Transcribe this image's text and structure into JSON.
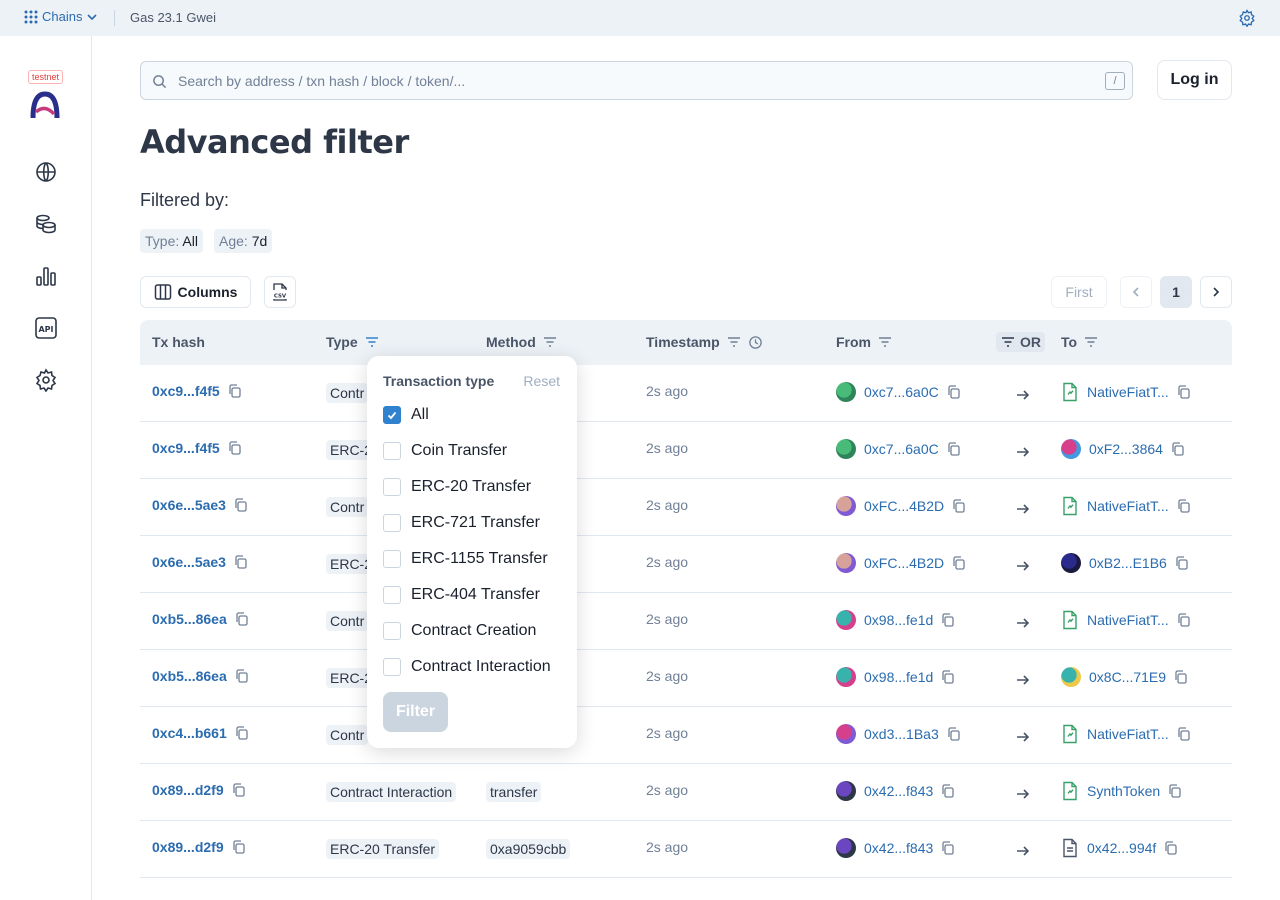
{
  "topbar": {
    "chains_label": "Chains",
    "gas_label": "Gas 23.1 Gwei"
  },
  "sidebar": {
    "testnet_label": "testnet",
    "items": [
      "globe-icon",
      "coins-icon",
      "chart-icon",
      "api-icon",
      "settings-icon"
    ]
  },
  "search": {
    "placeholder": "Search by address / txn hash / block / token/...",
    "shortcut": "/"
  },
  "header": {
    "login_label": "Log in",
    "title": "Advanced filter",
    "filtered_by": "Filtered by:"
  },
  "chips": [
    {
      "key": "Type:",
      "value": "All"
    },
    {
      "key": "Age:",
      "value": "7d"
    }
  ],
  "toolbar": {
    "columns_label": "Columns",
    "csv_label": "CSV"
  },
  "pagination": {
    "first": "First",
    "page": "1"
  },
  "table": {
    "headers": [
      "Tx hash",
      "Type",
      "Method",
      "Timestamp",
      "From",
      "OR",
      "To"
    ],
    "rows": [
      {
        "hash": "0xc9...f4f5",
        "type": "Contr",
        "method": "",
        "time": "2s ago",
        "from": "0xc7...6a0C",
        "to": "NativeFiatT...",
        "to_kind": "contract"
      },
      {
        "hash": "0xc9...f4f5",
        "type": "ERC-2",
        "method": "",
        "time": "2s ago",
        "from": "0xc7...6a0C",
        "to": "0xF2...3864",
        "to_kind": "avatar"
      },
      {
        "hash": "0x6e...5ae3",
        "type": "Contr",
        "method": "",
        "time": "2s ago",
        "from": "0xFC...4B2D",
        "to": "NativeFiatT...",
        "to_kind": "contract"
      },
      {
        "hash": "0x6e...5ae3",
        "type": "ERC-2",
        "method": "",
        "time": "2s ago",
        "from": "0xFC...4B2D",
        "to": "0xB2...E1B6",
        "to_kind": "avatar"
      },
      {
        "hash": "0xb5...86ea",
        "type": "Contr",
        "method": "",
        "time": "2s ago",
        "from": "0x98...fe1d",
        "to": "NativeFiatT...",
        "to_kind": "contract"
      },
      {
        "hash": "0xb5...86ea",
        "type": "ERC-2",
        "method": "",
        "time": "2s ago",
        "from": "0x98...fe1d",
        "to": "0x8C...71E9",
        "to_kind": "avatar"
      },
      {
        "hash": "0xc4...b661",
        "type": "Contr",
        "method": "",
        "time": "2s ago",
        "from": "0xd3...1Ba3",
        "to": "NativeFiatT...",
        "to_kind": "contract"
      },
      {
        "hash": "0x89...d2f9",
        "type": "Contract Interaction",
        "method": "transfer",
        "time": "2s ago",
        "from": "0x42...f843",
        "to": "SynthToken",
        "to_kind": "contract"
      },
      {
        "hash": "0x89...d2f9",
        "type": "ERC-20 Transfer",
        "method": "0xa9059cbb",
        "time": "2s ago",
        "from": "0x42...f843",
        "to": "0x42...994f",
        "to_kind": "file"
      }
    ]
  },
  "popup": {
    "title": "Transaction type",
    "reset": "Reset",
    "options": [
      {
        "label": "All",
        "checked": true
      },
      {
        "label": "Coin Transfer",
        "checked": false
      },
      {
        "label": "ERC-20 Transfer",
        "checked": false
      },
      {
        "label": "ERC-721 Transfer",
        "checked": false
      },
      {
        "label": "ERC-1155 Transfer",
        "checked": false
      },
      {
        "label": "ERC-404 Transfer",
        "checked": false
      },
      {
        "label": "Contract Creation",
        "checked": false
      },
      {
        "label": "Contract Interaction",
        "checked": false
      }
    ],
    "filter_label": "Filter"
  },
  "colors": {
    "accent": "#2b6cb0",
    "checkbox": "#3182ce",
    "header_bg": "#edf2f7"
  }
}
